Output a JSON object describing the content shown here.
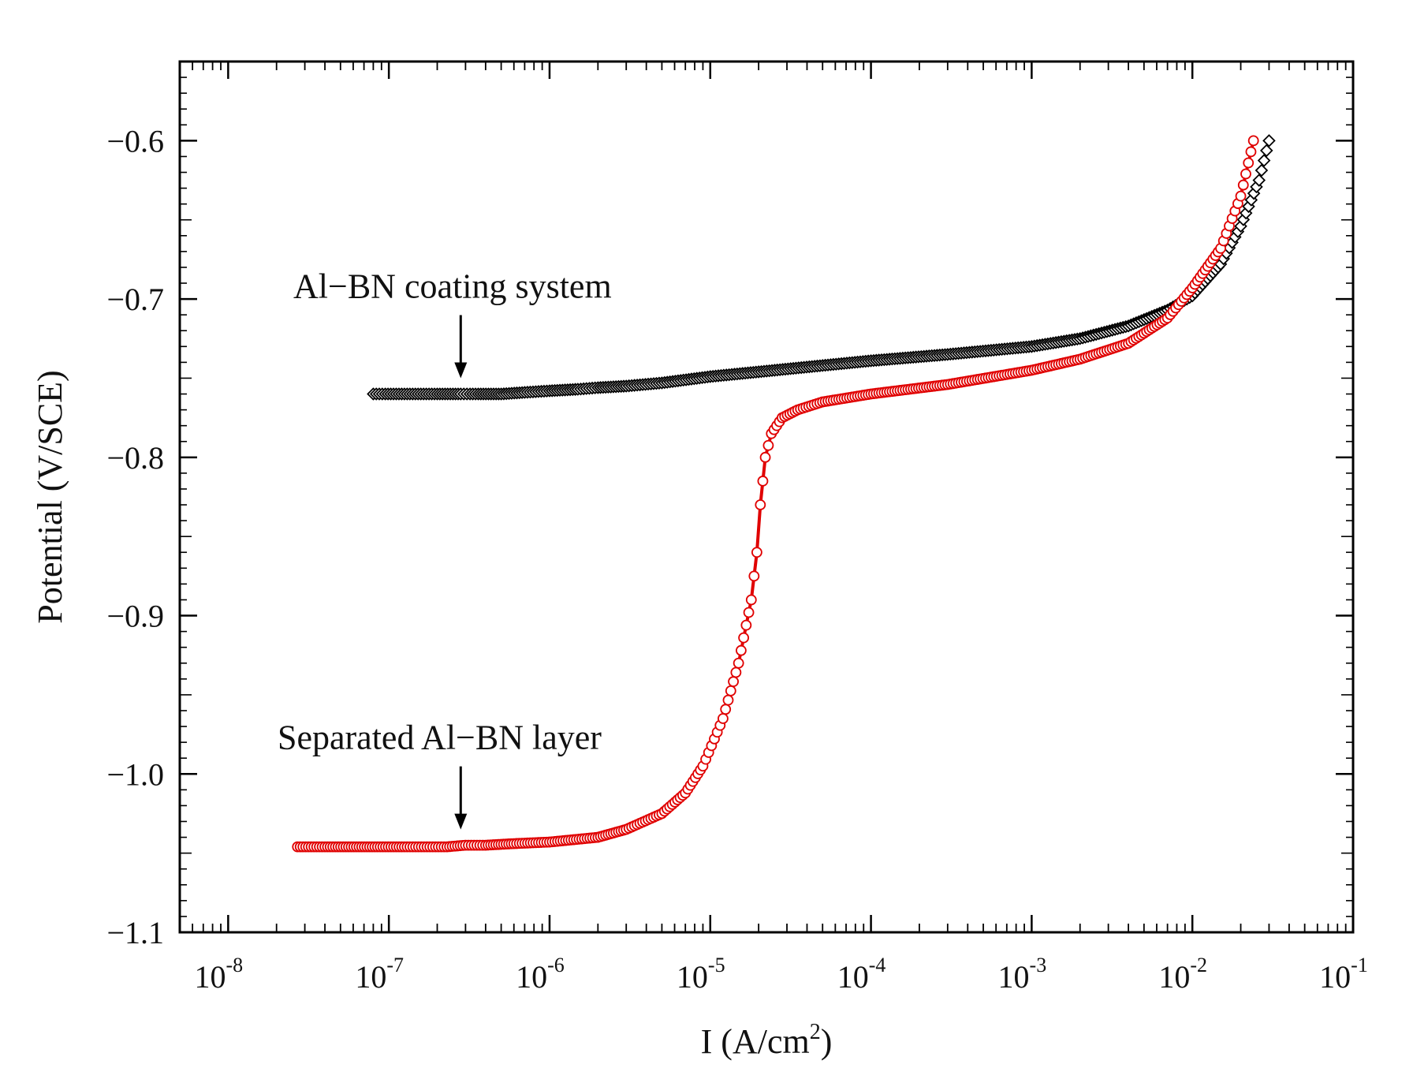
{
  "chart_data": {
    "type": "scatter",
    "title": "",
    "xlabel_main": "I (A/cm",
    "xlabel_sup": "2",
    "xlabel_end": ")",
    "ylabel": "Potential (V/SCE)",
    "xscale": "log",
    "xlim": [
      5e-09,
      0.1
    ],
    "ylim": [
      -1.1,
      -0.55
    ],
    "x_ticks": [
      {
        "value": 1e-08,
        "base": "10",
        "exp": "-8"
      },
      {
        "value": 1e-07,
        "base": "10",
        "exp": "-7"
      },
      {
        "value": 1e-06,
        "base": "10",
        "exp": "-6"
      },
      {
        "value": 1e-05,
        "base": "10",
        "exp": "-5"
      },
      {
        "value": 0.0001,
        "base": "10",
        "exp": "-4"
      },
      {
        "value": 0.001,
        "base": "10",
        "exp": "-3"
      },
      {
        "value": 0.01,
        "base": "10",
        "exp": "-2"
      },
      {
        "value": 0.1,
        "base": "10",
        "exp": "-1"
      }
    ],
    "y_ticks": [
      {
        "value": -0.6,
        "label": "−0.6"
      },
      {
        "value": -0.7,
        "label": "−0.7"
      },
      {
        "value": -0.8,
        "label": "−0.8"
      },
      {
        "value": -0.9,
        "label": "−0.9"
      },
      {
        "value": -1.0,
        "label": "−1.0"
      },
      {
        "value": -1.1,
        "label": "−1.1"
      }
    ],
    "grid": false,
    "legend": "none",
    "series": [
      {
        "color": "#000000",
        "marker": "diamond-open",
        "x": [
          8e-08,
          9.5e-08,
          2e-07,
          2.8e-07,
          3.2e-07,
          3.6e-07,
          5e-07,
          7e-07,
          1e-06,
          1.5e-06,
          2e-06,
          3e-06,
          5e-06,
          1e-05,
          2e-05,
          5e-05,
          0.0001,
          0.0003,
          0.001,
          0.002,
          0.004,
          0.007,
          0.01,
          0.015,
          0.02,
          0.026,
          0.03
        ],
        "y": [
          -0.76,
          -0.76,
          -0.76,
          -0.76,
          -0.76,
          -0.76,
          -0.76,
          -0.759,
          -0.758,
          -0.757,
          -0.756,
          -0.755,
          -0.753,
          -0.749,
          -0.746,
          -0.742,
          -0.739,
          -0.735,
          -0.73,
          -0.725,
          -0.717,
          -0.707,
          -0.698,
          -0.678,
          -0.654,
          -0.625,
          -0.6
        ]
      },
      {
        "color": "#e00000",
        "marker": "circle-open",
        "x": [
          2.7e-08,
          4e-08,
          8.5e-08,
          1.3e-07,
          1.8e-07,
          2.3e-07,
          3e-07,
          4e-07,
          6e-07,
          1e-06,
          2e-06,
          3e-06,
          5e-06,
          7e-06,
          9e-06,
          1.2e-05,
          1.5e-05,
          1.8e-05,
          1.95e-05,
          2.05e-05,
          2.2e-05,
          2.4e-05,
          2.8e-05,
          3.5e-05,
          5e-05,
          0.0001,
          0.0003,
          0.001,
          0.002,
          0.004,
          0.007,
          0.01,
          0.015,
          0.02,
          0.024
        ],
        "y": [
          -1.046,
          -1.046,
          -1.046,
          -1.046,
          -1.046,
          -1.046,
          -1.045,
          -1.045,
          -1.044,
          -1.043,
          -1.04,
          -1.035,
          -1.025,
          -1.012,
          -0.995,
          -0.965,
          -0.93,
          -0.89,
          -0.86,
          -0.83,
          -0.8,
          -0.785,
          -0.775,
          -0.77,
          -0.765,
          -0.76,
          -0.754,
          -0.745,
          -0.738,
          -0.728,
          -0.712,
          -0.693,
          -0.668,
          -0.635,
          -0.6
        ]
      }
    ],
    "annotations": [
      {
        "text": "Al−BN coating system",
        "x": 2.8e-07,
        "y": -0.755
      },
      {
        "text": "Separated Al−BN layer",
        "x": 2.8e-07,
        "y": -1.04
      }
    ]
  }
}
